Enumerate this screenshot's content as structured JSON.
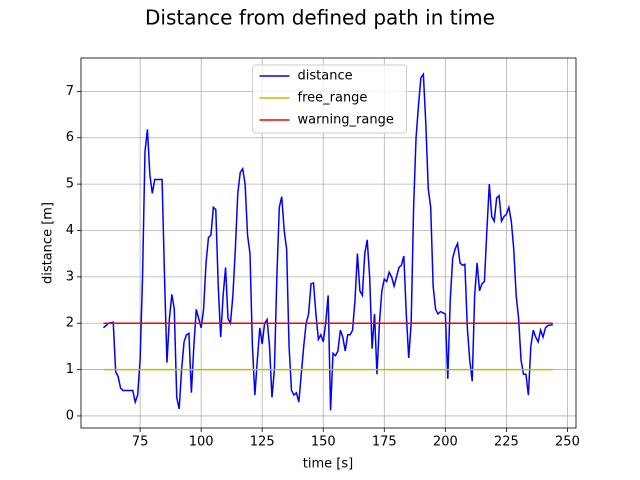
{
  "chart_data": {
    "type": "line",
    "title": "Distance from defined path in time",
    "x_label": "time [s]",
    "y_label": "distance [m]",
    "xlim": [
      50.8,
      253.5
    ],
    "ylim": [
      -0.26,
      7.72
    ],
    "xticks": [
      75,
      100,
      125,
      150,
      175,
      200,
      225,
      250
    ],
    "yticks": [
      0,
      1,
      2,
      3,
      4,
      5,
      6,
      7
    ],
    "grid": true,
    "legend": "upper center",
    "series": [
      {
        "name": "distance",
        "color": "#0000ff",
        "x": [
          60,
          62,
          64,
          65,
          66,
          67,
          68,
          72,
          73,
          74,
          75,
          76,
          77,
          78,
          79,
          80,
          81,
          84,
          85,
          86,
          87,
          88,
          89,
          90,
          91,
          92,
          93,
          94,
          95,
          96,
          97,
          98,
          99,
          100,
          101,
          102,
          103,
          104,
          105,
          106,
          107,
          108,
          109,
          110,
          111,
          112,
          113,
          114,
          115,
          116,
          117,
          118,
          119,
          120,
          121,
          122,
          123,
          124,
          125,
          126,
          127,
          128,
          129,
          130,
          131,
          132,
          133,
          134,
          135,
          136,
          137,
          138,
          139,
          140,
          141,
          142,
          143,
          144,
          145,
          146,
          147,
          148,
          149,
          150,
          151,
          152,
          153,
          154,
          155,
          156,
          157,
          158,
          159,
          160,
          161,
          162,
          163,
          164,
          165,
          166,
          167,
          168,
          169,
          170,
          171,
          172,
          173,
          174,
          175,
          176,
          177,
          178,
          179,
          180,
          181,
          182,
          183,
          184,
          185,
          186,
          187,
          188,
          189,
          190,
          191,
          192,
          193,
          194,
          195,
          196,
          197,
          198,
          200,
          201,
          202,
          203,
          204,
          205,
          206,
          207,
          208,
          209,
          210,
          211,
          212,
          213,
          214,
          215,
          216,
          217,
          218,
          219,
          220,
          221,
          222,
          223,
          224,
          225,
          226,
          227,
          228,
          229,
          230,
          231,
          232,
          233,
          234,
          235,
          236,
          237,
          238,
          239,
          240,
          241,
          242,
          244
        ],
        "values": [
          1.9,
          2.0,
          2.02,
          0.95,
          0.85,
          0.6,
          0.55,
          0.55,
          0.3,
          0.45,
          1.2,
          3.0,
          5.7,
          6.18,
          5.2,
          4.8,
          5.1,
          5.1,
          3.0,
          1.15,
          2.1,
          2.62,
          2.3,
          0.4,
          0.15,
          1.0,
          1.6,
          1.75,
          1.78,
          0.5,
          1.5,
          2.3,
          2.1,
          1.9,
          2.3,
          3.3,
          3.85,
          3.9,
          4.5,
          4.45,
          2.8,
          1.7,
          2.6,
          3.2,
          2.1,
          2.0,
          2.6,
          3.6,
          4.8,
          5.25,
          5.33,
          5.0,
          3.9,
          3.5,
          1.5,
          0.45,
          1.2,
          1.9,
          1.55,
          2.0,
          2.08,
          1.5,
          0.4,
          1.0,
          3.0,
          4.5,
          4.73,
          4.0,
          3.6,
          1.5,
          0.55,
          0.45,
          0.5,
          0.3,
          0.9,
          1.5,
          2.0,
          2.2,
          2.85,
          2.87,
          2.2,
          1.65,
          1.75,
          1.6,
          2.0,
          2.6,
          0.12,
          1.35,
          1.3,
          1.4,
          1.85,
          1.7,
          1.4,
          1.75,
          1.75,
          1.85,
          2.5,
          3.5,
          2.7,
          2.6,
          3.5,
          3.8,
          3.0,
          1.45,
          2.2,
          0.9,
          2.0,
          2.7,
          2.95,
          2.9,
          3.1,
          3.0,
          2.8,
          3.0,
          3.2,
          3.25,
          3.45,
          2.2,
          1.25,
          2.0,
          4.5,
          6.0,
          6.7,
          7.3,
          7.37,
          6.3,
          4.9,
          4.5,
          2.8,
          2.3,
          2.2,
          2.25,
          2.2,
          0.8,
          2.5,
          3.4,
          3.6,
          3.72,
          3.3,
          3.25,
          3.27,
          1.9,
          1.2,
          0.75,
          2.6,
          3.3,
          2.7,
          2.85,
          2.9,
          4.0,
          5.0,
          4.3,
          4.2,
          4.7,
          4.75,
          4.2,
          4.3,
          4.35,
          4.5,
          4.2,
          3.6,
          2.6,
          2.1,
          1.2,
          0.9,
          0.9,
          0.45,
          1.5,
          1.85,
          1.7,
          1.6,
          1.85,
          1.7,
          1.9,
          1.95,
          1.97
        ]
      },
      {
        "name": "free_range",
        "color": "#bfbf00",
        "x": [
          60,
          244
        ],
        "values": [
          1,
          1
        ]
      },
      {
        "name": "warning_range",
        "color": "#ff0000",
        "x": [
          60,
          244
        ],
        "values": [
          2,
          2
        ]
      }
    ]
  }
}
